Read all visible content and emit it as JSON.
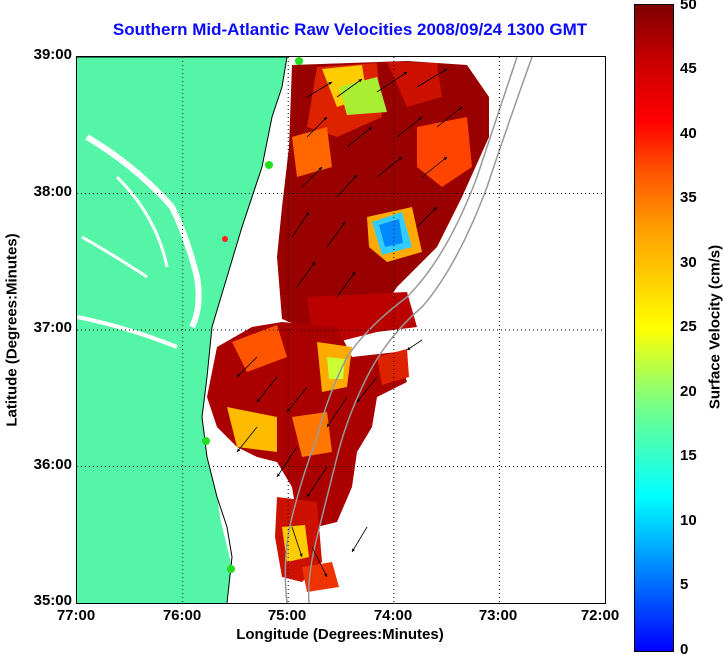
{
  "title": "Southern Mid-Atlantic Raw Velocities 2008/09/24 1300 GMT",
  "x_axis": {
    "label": "Longitude (Degrees:Minutes)",
    "ticks": [
      "77:00",
      "76:00",
      "75:00",
      "74:00",
      "73:00",
      "72:00"
    ]
  },
  "y_axis": {
    "label": "Latitude (Degrees:Minutes)",
    "ticks": [
      "39:00",
      "38:00",
      "37:00",
      "36:00",
      "35:00"
    ]
  },
  "colorbar": {
    "label": "Surface Velocity (cm/s)",
    "ticks": [
      "50",
      "45",
      "40",
      "35",
      "30",
      "25",
      "20",
      "15",
      "10",
      "5",
      "0"
    ],
    "range": [
      0,
      50
    ]
  },
  "map": {
    "lon_range": [
      -77,
      -72
    ],
    "lat_range": [
      35,
      39
    ],
    "grid": "dotted",
    "land_color": "#55f5a8",
    "station_color": "#22dd22"
  },
  "chart_data": {
    "type": "heatmap",
    "title": "Southern Mid-Atlantic Raw Velocities 2008/09/24 1300 GMT",
    "xlabel": "Longitude (Degrees:Minutes)",
    "ylabel": "Latitude (Degrees:Minutes)",
    "xlim": [
      -77,
      -72
    ],
    "ylim": [
      35,
      39
    ],
    "colorbar_range": [
      0,
      50
    ],
    "colorbar_label": "Surface Velocity (cm/s)"
  }
}
